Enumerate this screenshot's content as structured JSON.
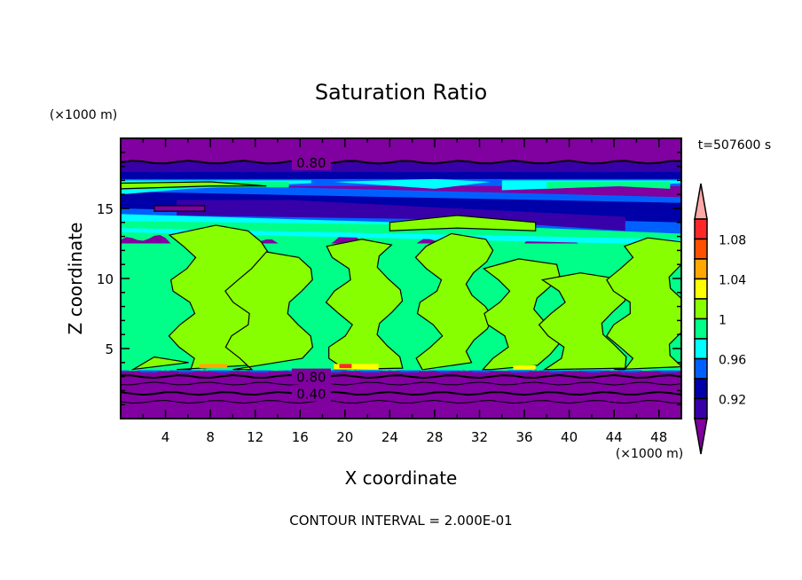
{
  "chart_data": {
    "type": "heatmap",
    "subtype": "filled-contour",
    "title": "Saturation Ratio",
    "xlabel": "X coordinate",
    "ylabel": "Z coordinate",
    "x_units": "(×1000 m)",
    "y_units": "(×1000 m)",
    "xlim": [
      0,
      50
    ],
    "ylim": [
      0,
      20
    ],
    "x_ticks": [
      4,
      8,
      12,
      16,
      20,
      24,
      28,
      32,
      36,
      40,
      44,
      48
    ],
    "y_ticks": [
      5,
      10,
      15
    ],
    "time_label": "t=507600 s",
    "footer": "CONTOUR INTERVAL = 2.000E-01",
    "contour_labels": [
      {
        "text": "0.80",
        "x": 17,
        "z": 18.3
      },
      {
        "text": "0.80",
        "x": 17,
        "z": 3.0
      },
      {
        "text": "0.40",
        "x": 17,
        "z": 1.8
      }
    ],
    "colorbar": {
      "levels": [
        0.9,
        0.92,
        0.94,
        0.96,
        0.98,
        1.0,
        1.02,
        1.04,
        1.06,
        1.08,
        1.1
      ],
      "tick_labels": [
        "1.08",
        "1.04",
        "1",
        "0.96",
        "0.92"
      ],
      "colors": [
        "#8000a0",
        "#3800a8",
        "#0000a8",
        "#0060ff",
        "#00ffff",
        "#00ff88",
        "#88ff00",
        "#ffff00",
        "#ffa800",
        "#ff5000",
        "#ff2828",
        "#ffa8a8"
      ]
    }
  }
}
